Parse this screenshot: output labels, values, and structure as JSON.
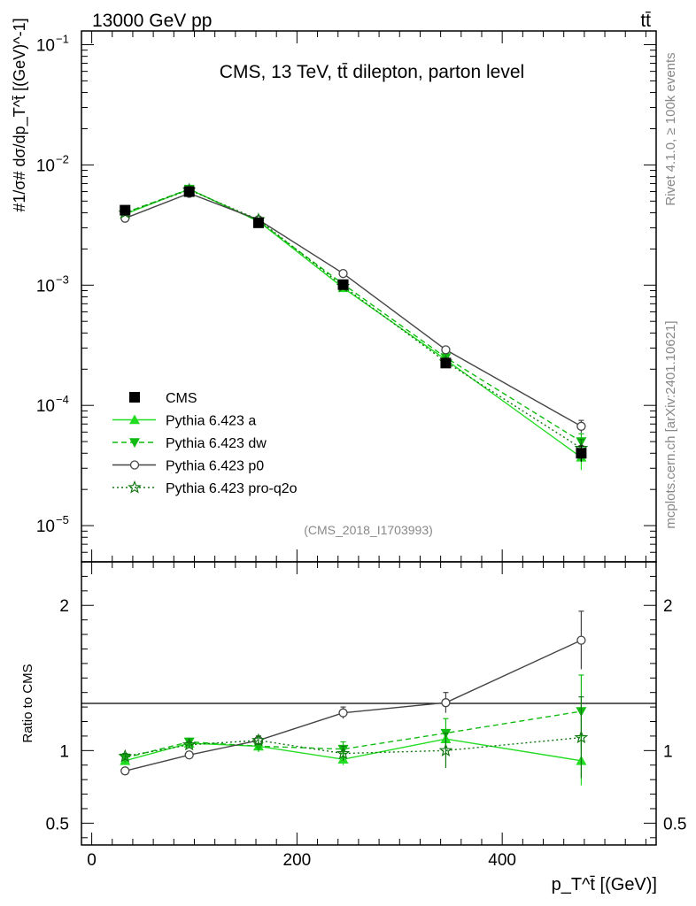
{
  "header": {
    "energy_label": "13000 GeV pp",
    "process_label": "tt̄"
  },
  "side_labels": {
    "rivet": "Rivet 4.1.0, ≥ 100k events",
    "mcplots": "mcplots.cern.ch [arXiv:2401.10621]"
  },
  "colors": {
    "data": "#000000",
    "pythia_a": "#22dd22",
    "pythia_dw": "#11bb11",
    "pythia_p0": "#444444",
    "pythia_pro": "#117711"
  },
  "chart_data": [
    {
      "type": "line",
      "title": "CMS, 13 TeV, tt̄ dilepton, parton level",
      "analysis_id": "(CMS_2018_I1703993)",
      "ylabel": "#1/σ# dσ/dp_T^t̄ [(GeV)^-1]",
      "yscale": "log",
      "ylim": [
        5e-06,
        0.13
      ],
      "yticks": [
        {
          "value": 1e-05,
          "label": "10",
          "exp": "−5"
        },
        {
          "value": 0.0001,
          "label": "10",
          "exp": "−4"
        },
        {
          "value": 0.001,
          "label": "10",
          "exp": "−3"
        },
        {
          "value": 0.01,
          "label": "10",
          "exp": "−2"
        },
        {
          "value": 0.1,
          "label": "10",
          "exp": "−1"
        }
      ],
      "xlim": [
        -10,
        550
      ],
      "x": [
        32.5,
        95,
        162.5,
        245,
        345,
        477
      ],
      "series": [
        {
          "name": "CMS",
          "color_key": "data",
          "marker": "square",
          "dash": "none",
          "values": [
            0.0042,
            0.006,
            0.0033,
            0.00101,
            0.000225,
            4e-05
          ],
          "err": [
            0.0002,
            0.0002,
            0.00015,
            5e-05,
            1.5e-05,
            6e-06
          ]
        },
        {
          "name": "Pythia 6.423 a",
          "color_key": "pythia_a",
          "marker": "tri_up",
          "dash": "none",
          "values": [
            0.0039,
            0.0063,
            0.0034,
            0.00095,
            0.00024,
            3.7e-05
          ],
          "err": [
            0,
            0,
            0,
            0,
            0,
            8e-06
          ]
        },
        {
          "name": "Pythia 6.423 dw",
          "color_key": "pythia_dw",
          "marker": "tri_down",
          "dash": "6,4",
          "values": [
            0.004,
            0.0063,
            0.0034,
            0.00102,
            0.00025,
            5e-05
          ],
          "err": [
            0,
            0,
            0,
            0,
            0,
            8e-06
          ]
        },
        {
          "name": "Pythia 6.423 p0",
          "color_key": "pythia_p0",
          "marker": "circle",
          "dash": "none",
          "values": [
            0.0036,
            0.0058,
            0.0035,
            0.00125,
            0.00029,
            6.7e-05
          ],
          "err": [
            0,
            0,
            0,
            5e-05,
            1.5e-05,
            8e-06
          ]
        },
        {
          "name": "Pythia 6.423 pro-q2o",
          "color_key": "pythia_pro",
          "marker": "star",
          "dash": "2,3",
          "values": [
            0.004,
            0.0062,
            0.0035,
            0.00098,
            0.00023,
            4.4e-05
          ],
          "err": [
            0,
            0,
            0,
            0,
            0,
            8e-06
          ]
        }
      ]
    },
    {
      "type": "line",
      "ylabel": "Ratio to CMS",
      "xlabel": "p_T^t̄ [(GeV)]",
      "ylim": [
        0.35,
        2.3
      ],
      "yticks": [
        {
          "value": 0.5,
          "label": "0.5"
        },
        {
          "value": 1,
          "label": "1"
        },
        {
          "value": 2,
          "label": "2"
        }
      ],
      "xlim": [
        -10,
        550
      ],
      "xticks": [
        {
          "value": 0,
          "label": "0"
        },
        {
          "value": 200,
          "label": "200"
        },
        {
          "value": 400,
          "label": "400"
        }
      ],
      "x": [
        32.5,
        95,
        162.5,
        245,
        345,
        477
      ],
      "series": [
        {
          "name": "Pythia 6.423 a",
          "color_key": "pythia_a",
          "marker": "tri_up",
          "dash": "none",
          "values": [
            0.93,
            1.05,
            1.03,
            0.94,
            1.08,
            0.93
          ],
          "err": [
            0.03,
            0.02,
            0.04,
            0.04,
            0.06,
            0.17
          ]
        },
        {
          "name": "Pythia 6.423 dw",
          "color_key": "pythia_dw",
          "marker": "tri_down",
          "dash": "6,4",
          "values": [
            0.95,
            1.06,
            1.03,
            1.01,
            1.12,
            1.27
          ],
          "err": [
            0.02,
            0.02,
            0.03,
            0.05,
            0.1,
            0.25
          ]
        },
        {
          "name": "Pythia 6.423 p0",
          "color_key": "pythia_p0",
          "marker": "circle",
          "dash": "none",
          "values": [
            0.86,
            0.97,
            1.07,
            1.26,
            1.33,
            1.76
          ],
          "err": [
            0.02,
            0.02,
            0.03,
            0.04,
            0.07,
            0.2
          ]
        },
        {
          "name": "Pythia 6.423 pro-q2o",
          "color_key": "pythia_pro",
          "marker": "star",
          "dash": "2,3",
          "values": [
            0.96,
            1.04,
            1.07,
            0.98,
            1.0,
            1.09
          ],
          "err": [
            0.02,
            0.02,
            0.03,
            0.05,
            0.12,
            0.28
          ]
        }
      ]
    }
  ]
}
